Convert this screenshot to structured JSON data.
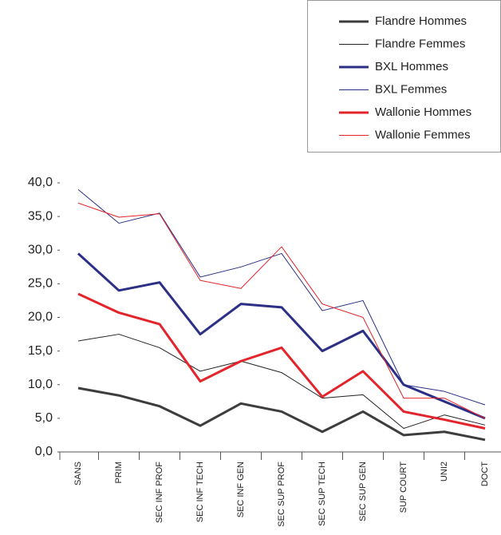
{
  "chart_data": {
    "type": "line",
    "categories": [
      "SANS",
      "PRIM",
      "SEC INF PROF",
      "SEC INF TECH",
      "SEC INF GEN",
      "SEC SUP PROF",
      "SEC SUP TECH",
      "SEC SUP GEN",
      "SUP COURT",
      "UNI2",
      "DOCT"
    ],
    "series": [
      {
        "name": "Flandre Hommes",
        "color": "#3d3d3d",
        "line_width": 3,
        "values": [
          9.5,
          8.4,
          6.8,
          3.9,
          7.2,
          6.0,
          3.0,
          6.0,
          2.5,
          3.0,
          1.8
        ]
      },
      {
        "name": "Flandre Femmes",
        "color": "#222222",
        "line_width": 1,
        "values": [
          16.5,
          17.5,
          15.5,
          12.0,
          13.5,
          11.8,
          8.0,
          8.5,
          3.5,
          5.5,
          4.0
        ]
      },
      {
        "name": "BXL Hommes",
        "color": "#2b2f86",
        "line_width": 3,
        "values": [
          29.5,
          24.0,
          25.2,
          17.5,
          22.0,
          21.5,
          15.0,
          18.0,
          10.0,
          7.5,
          5.0
        ]
      },
      {
        "name": "BXL Femmes",
        "color": "#2b2f86",
        "line_width": 1,
        "values": [
          39.0,
          34.0,
          35.5,
          26.0,
          27.5,
          29.5,
          21.0,
          22.5,
          10.0,
          9.0,
          7.0
        ]
      },
      {
        "name": "Wallonie Hommes",
        "color": "#e3242b",
        "line_width": 3,
        "values": [
          23.5,
          20.7,
          19.0,
          10.5,
          13.5,
          15.5,
          8.2,
          12.0,
          6.0,
          4.8,
          3.5
        ]
      },
      {
        "name": "Wallonie Femmes",
        "color": "#e3242b",
        "line_width": 1,
        "values": [
          37.0,
          34.9,
          35.4,
          25.5,
          24.3,
          30.5,
          22.0,
          20.0,
          8.0,
          8.0,
          5.0
        ]
      }
    ],
    "ylim": [
      0,
      40
    ],
    "yticks": [
      {
        "value": 0,
        "label": "0,0"
      },
      {
        "value": 5,
        "label": "5,0"
      },
      {
        "value": 10,
        "label": "10,0"
      },
      {
        "value": 15,
        "label": "15,0"
      },
      {
        "value": 20,
        "label": "20,0"
      },
      {
        "value": 25,
        "label": "25,0"
      },
      {
        "value": 30,
        "label": "30,0"
      },
      {
        "value": 35,
        "label": "35,0"
      },
      {
        "value": 40,
        "label": "40,0"
      }
    ],
    "legend": "top-right"
  }
}
